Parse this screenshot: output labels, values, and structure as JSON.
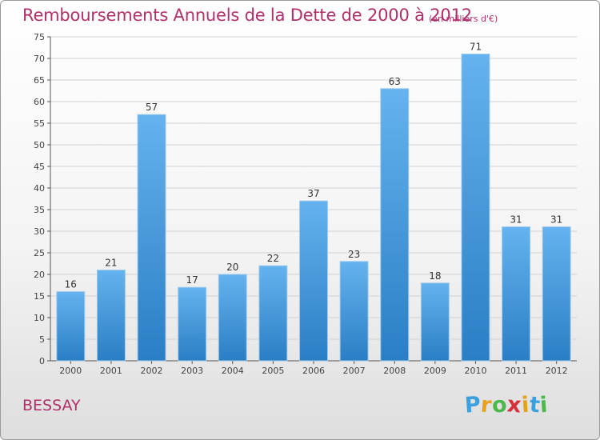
{
  "chart_data": {
    "type": "bar",
    "title": "Remboursements Annuels de la Dette de 2000 à 2012",
    "subtitle": "(en milliers d'€)",
    "categories": [
      "2000",
      "2001",
      "2002",
      "2003",
      "2004",
      "2005",
      "2006",
      "2007",
      "2008",
      "2009",
      "2010",
      "2011",
      "2012"
    ],
    "values": [
      16,
      21,
      57,
      17,
      20,
      22,
      37,
      23,
      63,
      18,
      71,
      31,
      31
    ],
    "ylim": [
      0,
      75
    ],
    "yticks": [
      "0",
      "5",
      "10",
      "15",
      "20",
      "25",
      "30",
      "35",
      "40",
      "45",
      "50",
      "55",
      "60",
      "65",
      "70",
      "75"
    ],
    "grid": true,
    "xlabel": "",
    "ylabel": "",
    "colors": {
      "bar_top": "#64b3ef",
      "bar_bottom": "#2a7ec4",
      "title": "#b0306a"
    }
  },
  "place_name": "BESSAY",
  "logo": {
    "letters": [
      "P",
      "r",
      "o",
      "x",
      "i",
      "t",
      "i"
    ],
    "colors": [
      "#3aa0e0",
      "#e8a020",
      "#4bb84b",
      "#d8303a",
      "#e8a020",
      "#3aa0e0",
      "#4bb84b"
    ]
  }
}
